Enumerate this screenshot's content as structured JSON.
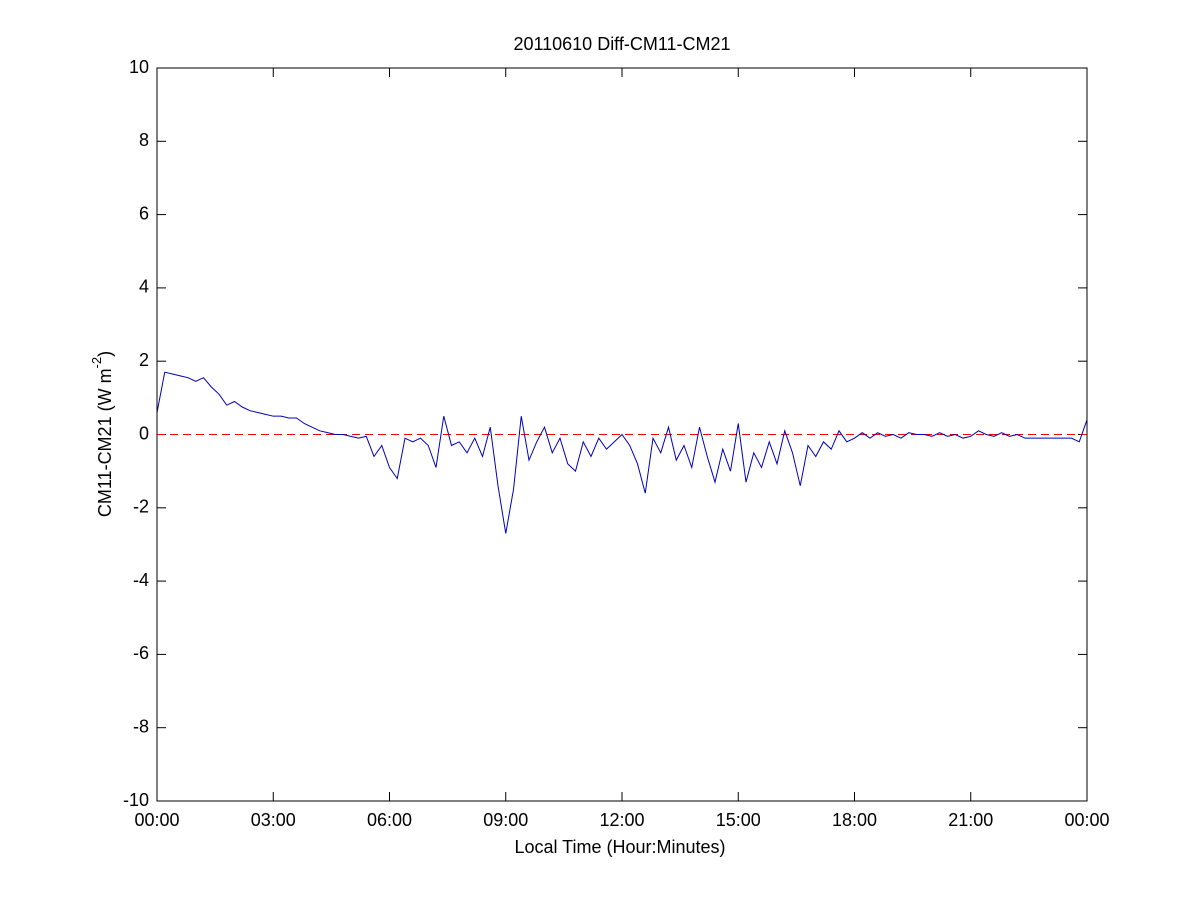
{
  "chart_data": {
    "type": "line",
    "title": "20110610 Diff-CM11-CM21",
    "xlabel": "Local Time (Hour:Minutes)",
    "ylabel": {
      "text": "CM11-CM21 (W m",
      "sup": "-2",
      "tail": ")"
    },
    "x": [
      0,
      0.2,
      0.4,
      0.6,
      0.8,
      1,
      1.2,
      1.4,
      1.6,
      1.8,
      2,
      2.2,
      2.4,
      2.6,
      2.8,
      3,
      3.2,
      3.4,
      3.6,
      3.8,
      4,
      4.2,
      4.4,
      4.6,
      4.8,
      5,
      5.2,
      5.4,
      5.6,
      5.8,
      6,
      6.2,
      6.4,
      6.6,
      6.8,
      7,
      7.2,
      7.4,
      7.6,
      7.8,
      8,
      8.2,
      8.4,
      8.6,
      8.8,
      9,
      9.2,
      9.4,
      9.6,
      9.8,
      10,
      10.2,
      10.4,
      10.6,
      10.8,
      11,
      11.2,
      11.4,
      11.6,
      11.8,
      12,
      12.2,
      12.4,
      12.6,
      12.8,
      13,
      13.2,
      13.4,
      13.6,
      13.8,
      14,
      14.2,
      14.4,
      14.6,
      14.8,
      15,
      15.2,
      15.4,
      15.6,
      15.8,
      16,
      16.2,
      16.4,
      16.6,
      16.8,
      17,
      17.2,
      17.4,
      17.6,
      17.8,
      18,
      18.2,
      18.4,
      18.6,
      18.8,
      19,
      19.2,
      19.4,
      19.6,
      19.8,
      20,
      20.2,
      20.4,
      20.6,
      20.8,
      21,
      21.2,
      21.4,
      21.6,
      21.8,
      22,
      22.2,
      22.4,
      22.6,
      22.8,
      23,
      23.2,
      23.4,
      23.6,
      23.8,
      24
    ],
    "series": [
      {
        "color": "#0000c0",
        "values": [
          0.6,
          1.7,
          1.65,
          1.6,
          1.55,
          1.45,
          1.55,
          1.3,
          1.1,
          0.8,
          0.9,
          0.75,
          0.65,
          0.6,
          0.55,
          0.5,
          0.5,
          0.45,
          0.45,
          0.3,
          0.2,
          0.1,
          0.05,
          0,
          0,
          -0.05,
          -0.1,
          -0.05,
          -0.6,
          -0.3,
          -0.9,
          -1.2,
          -0.1,
          -0.2,
          -0.1,
          -0.3,
          -0.9,
          0.5,
          -0.3,
          -0.2,
          -0.5,
          -0.1,
          -0.6,
          0.2,
          -1.4,
          -2.7,
          -1.5,
          0.5,
          -0.7,
          -0.2,
          0.2,
          -0.5,
          -0.1,
          -0.8,
          -1,
          -0.2,
          -0.6,
          -0.1,
          -0.4,
          -0.2,
          0,
          -0.3,
          -0.8,
          -1.6,
          -0.1,
          -0.5,
          0.2,
          -0.7,
          -0.3,
          -0.9,
          0.2,
          -0.6,
          -1.3,
          -0.4,
          -1,
          0.3,
          -1.3,
          -0.5,
          -0.9,
          -0.2,
          -0.8,
          0.1,
          -0.5,
          -1.4,
          -0.3,
          -0.6,
          -0.2,
          -0.4,
          0.1,
          -0.2,
          -0.1,
          0.05,
          -0.1,
          0.05,
          -0.05,
          0,
          -0.1,
          0.05,
          0,
          0,
          -0.05,
          0.05,
          -0.05,
          0,
          -0.1,
          -0.05,
          0.1,
          0,
          -0.05,
          0.05,
          -0.05,
          0,
          -0.1,
          -0.1,
          -0.1,
          -0.1,
          -0.1,
          -0.1,
          -0.1,
          -0.2,
          0.4
        ]
      }
    ],
    "reference_line": {
      "y": 0,
      "color": "#ff0000"
    },
    "xlim": [
      0,
      24
    ],
    "xticks": [
      {
        "value": 0,
        "label": "00:00"
      },
      {
        "value": 3,
        "label": "03:00"
      },
      {
        "value": 6,
        "label": "06:00"
      },
      {
        "value": 9,
        "label": "09:00"
      },
      {
        "value": 12,
        "label": "12:00"
      },
      {
        "value": 15,
        "label": "15:00"
      },
      {
        "value": 18,
        "label": "18:00"
      },
      {
        "value": 21,
        "label": "21:00"
      },
      {
        "value": 24,
        "label": "00:00"
      }
    ],
    "ylim": [
      -10,
      10
    ],
    "yticks": [
      -10,
      -8,
      -6,
      -4,
      -2,
      0,
      2,
      4,
      6,
      8,
      10
    ],
    "grid": false
  }
}
